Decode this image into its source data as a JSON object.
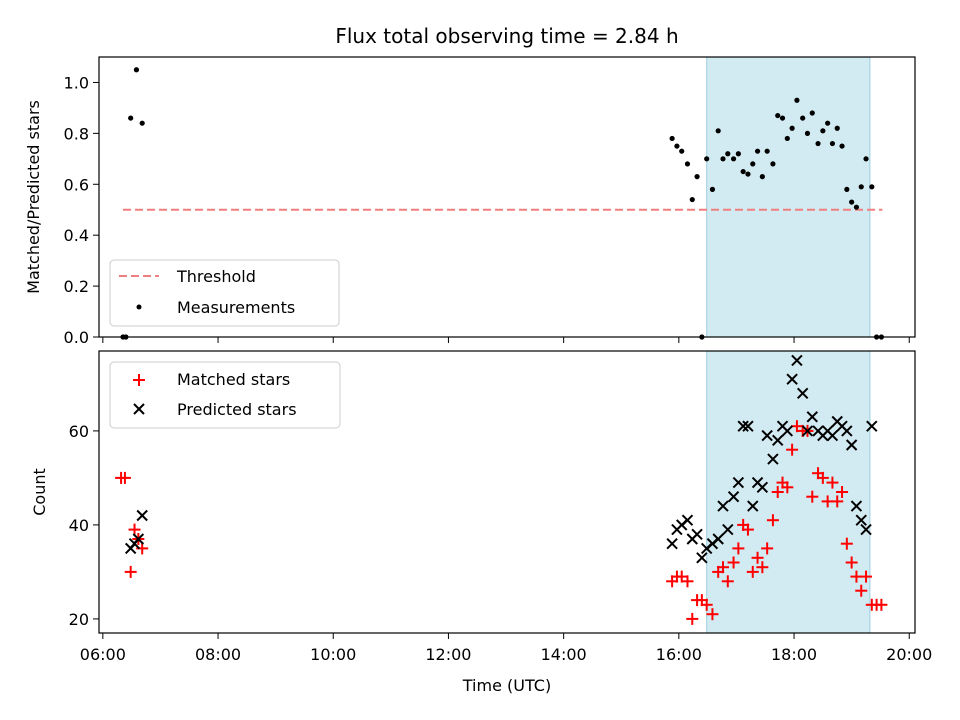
{
  "chart_data": [
    {
      "type": "scatter",
      "panel": "top",
      "title": "Flux total observing time = 2.84 h",
      "ylabel": "Matched/Predicted stars",
      "xlabel": "",
      "ylim": [
        0,
        1.1
      ],
      "xlim": [
        "05:56",
        "20:06"
      ],
      "yticks": [
        "0.0",
        "0.2",
        "0.4",
        "0.6",
        "0.8",
        "1.0"
      ],
      "shaded_region": {
        "x": [
          "16:29",
          "19:19"
        ],
        "color": "#add8e6"
      },
      "legend_position": "lower-left",
      "series": [
        {
          "name": "Threshold",
          "style": "dashed-line",
          "color": "#f08080",
          "x": [
            "06:21",
            "19:32"
          ],
          "y": [
            0.5,
            0.5
          ]
        },
        {
          "name": "Measurements",
          "style": "dot",
          "color": "#000000",
          "x": [
            "06:21",
            "06:24",
            "06:29",
            "06:35",
            "06:41",
            "15:53",
            "15:58",
            "16:03",
            "16:09",
            "16:14",
            "16:19",
            "16:24",
            "16:29",
            "16:35",
            "16:41",
            "16:46",
            "16:51",
            "16:57",
            "17:02",
            "17:07",
            "17:12",
            "17:17",
            "17:22",
            "17:27",
            "17:32",
            "17:38",
            "17:43",
            "17:48",
            "17:53",
            "17:58",
            "18:03",
            "18:09",
            "18:14",
            "18:19",
            "18:25",
            "18:30",
            "18:35",
            "18:40",
            "18:45",
            "18:50",
            "18:55",
            "19:00",
            "19:05",
            "19:10",
            "19:15",
            "19:21",
            "19:26",
            "19:31"
          ],
          "y": [
            0.0,
            0.0,
            0.86,
            1.05,
            0.84,
            0.78,
            0.75,
            0.73,
            0.68,
            0.54,
            0.63,
            0.0,
            0.7,
            0.58,
            0.81,
            0.7,
            0.72,
            0.7,
            0.72,
            0.65,
            0.64,
            0.68,
            0.73,
            0.63,
            0.73,
            0.68,
            0.87,
            0.86,
            0.78,
            0.82,
            0.93,
            0.86,
            0.8,
            0.88,
            0.76,
            0.81,
            0.84,
            0.76,
            0.82,
            0.75,
            0.58,
            0.53,
            0.51,
            0.59,
            0.7,
            0.59,
            0.0,
            0.0
          ]
        }
      ]
    },
    {
      "type": "scatter",
      "panel": "bottom",
      "title": "",
      "xlabel": "Time (UTC)",
      "ylabel": "Count",
      "ylim": [
        17,
        77
      ],
      "xlim": [
        "05:56",
        "20:06"
      ],
      "yticks": [
        "20",
        "40",
        "60"
      ],
      "xticks": [
        "06:00",
        "08:00",
        "10:00",
        "12:00",
        "14:00",
        "16:00",
        "18:00",
        "20:00"
      ],
      "shaded_region": {
        "x": [
          "16:29",
          "19:19"
        ],
        "color": "#add8e6"
      },
      "legend_position": "upper-left",
      "series": [
        {
          "name": "Matched stars",
          "marker": "+",
          "color": "#ff0000",
          "x": [
            "06:19",
            "06:23",
            "06:29",
            "06:33",
            "06:37",
            "06:41",
            "15:53",
            "15:58",
            "16:03",
            "16:09",
            "16:14",
            "16:19",
            "16:24",
            "16:29",
            "16:35",
            "16:41",
            "16:46",
            "16:51",
            "16:57",
            "17:02",
            "17:07",
            "17:12",
            "17:17",
            "17:22",
            "17:27",
            "17:32",
            "17:38",
            "17:43",
            "17:48",
            "17:53",
            "17:58",
            "18:03",
            "18:09",
            "18:14",
            "18:19",
            "18:25",
            "18:30",
            "18:35",
            "18:40",
            "18:45",
            "18:50",
            "18:55",
            "19:00",
            "19:05",
            "19:10",
            "19:15",
            "19:21",
            "19:26",
            "19:31"
          ],
          "y": [
            50,
            50,
            30,
            39,
            37,
            35,
            28,
            29,
            29,
            28,
            20,
            24,
            24,
            23,
            21,
            30,
            31,
            28,
            32,
            35,
            40,
            39,
            30,
            33,
            31,
            35,
            41,
            47,
            49,
            48,
            56,
            61,
            60,
            60,
            46,
            51,
            50,
            45,
            49,
            45,
            47,
            36,
            32,
            29,
            26,
            29,
            23,
            23,
            23
          ]
        },
        {
          "name": "Predicted stars",
          "marker": "x",
          "color": "#000000",
          "x": [
            "06:29",
            "06:33",
            "06:37",
            "06:41",
            "15:53",
            "15:58",
            "16:03",
            "16:09",
            "16:14",
            "16:19",
            "16:24",
            "16:29",
            "16:35",
            "16:41",
            "16:46",
            "16:51",
            "16:57",
            "17:02",
            "17:07",
            "17:12",
            "17:17",
            "17:22",
            "17:27",
            "17:32",
            "17:38",
            "17:43",
            "17:48",
            "17:53",
            "17:58",
            "18:03",
            "18:09",
            "18:14",
            "18:19",
            "18:25",
            "18:30",
            "18:35",
            "18:40",
            "18:45",
            "18:50",
            "18:55",
            "19:00",
            "19:05",
            "19:10",
            "19:15",
            "19:21"
          ],
          "y": [
            35,
            36,
            37,
            42,
            36,
            39,
            40,
            41,
            37,
            38,
            33,
            35,
            36,
            37,
            44,
            39,
            46,
            49,
            61,
            61,
            44,
            49,
            48,
            59,
            54,
            58,
            61,
            60,
            71,
            75,
            68,
            60,
            63,
            60,
            59,
            60,
            59,
            62,
            61,
            60,
            57,
            44,
            41,
            39,
            61
          ]
        }
      ]
    }
  ]
}
